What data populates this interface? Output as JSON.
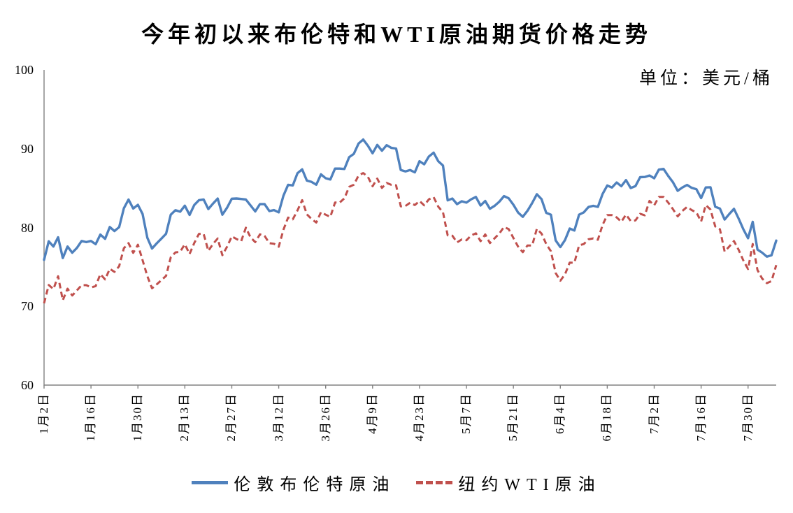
{
  "page": {
    "title": "今年初以来布伦特和WTI原油期货价格走势",
    "unit_label": "单位：美元/桶"
  },
  "colors": {
    "brent_blue": "#4F81BD",
    "wti_red": "#C0504D",
    "axis_gray": "#808080",
    "text_black": "#000000",
    "background": "#ffffff"
  },
  "legend": [
    {
      "label": "伦敦布伦特原油",
      "color": "#4F81BD",
      "line_style": "solid"
    },
    {
      "label": "纽约WTI原油",
      "color": "#C0504D",
      "line_style": "dashed"
    }
  ],
  "chart_data": {
    "type": "line",
    "title": "今年初以来布伦特和WTI原油期货价格走势",
    "unit": "美元/桶",
    "xlabel": "",
    "ylabel": "",
    "ylim": [
      60,
      100
    ],
    "yticks": [
      60,
      70,
      80,
      90,
      100
    ],
    "grid": false,
    "legend_position": "bottom",
    "x_tick_labels": [
      "1月2日",
      "1月16日",
      "1月30日",
      "2月13日",
      "2月27日",
      "3月12日",
      "3月26日",
      "4月9日",
      "4月23日",
      "5月7日",
      "5月21日",
      "6月4日",
      "6月18日",
      "7月2日",
      "7月16日",
      "7月30日"
    ],
    "x_tick_interval": 10,
    "series": [
      {
        "name": "伦敦布伦特原油",
        "color": "#4F81BD",
        "line_style": "solid",
        "values": [
          75.89,
          78.25,
          77.59,
          78.76,
          76.12,
          77.59,
          76.8,
          77.41,
          78.29,
          78.15,
          78.29,
          77.88,
          79.1,
          78.56,
          80.06,
          79.55,
          80.04,
          82.43,
          83.55,
          82.4,
          82.87,
          81.71,
          78.7,
          77.33,
          77.99,
          78.59,
          79.21,
          81.63,
          82.19,
          82.0,
          82.77,
          81.6,
          82.86,
          83.47,
          83.56,
          82.34,
          83.03,
          83.67,
          81.62,
          82.53,
          83.65,
          83.68,
          83.62,
          83.55,
          82.8,
          82.04,
          82.96,
          82.96,
          82.08,
          82.21,
          81.92,
          84.03,
          85.42,
          85.34,
          86.89,
          87.38,
          85.95,
          85.78,
          85.43,
          86.75,
          86.25,
          86.09,
          87.48,
          87.48,
          87.42,
          88.92,
          89.35,
          90.65,
          91.17,
          90.38,
          89.42,
          90.48,
          89.74,
          90.45,
          90.1,
          90.02,
          87.29,
          87.11,
          87.29,
          87.0,
          88.42,
          88.02,
          89.01,
          89.5,
          88.4,
          87.86,
          83.44,
          83.67,
          82.96,
          83.33,
          83.16,
          83.58,
          83.88,
          82.79,
          83.36,
          82.38,
          82.75,
          83.27,
          83.98,
          83.71,
          82.88,
          81.9,
          81.36,
          82.12,
          83.1,
          84.22,
          83.6,
          81.86,
          81.62,
          78.36,
          77.52,
          78.41,
          79.87,
          79.62,
          81.63,
          81.92,
          82.6,
          82.75,
          82.62,
          84.25,
          85.33,
          85.07,
          85.71,
          85.24,
          86.01,
          85.01,
          85.25,
          86.39,
          86.41,
          86.6,
          86.24,
          87.34,
          87.43,
          86.54,
          85.75,
          84.66,
          85.08,
          85.4,
          85.03,
          84.85,
          83.73,
          85.08,
          85.11,
          82.63,
          82.4,
          81.01,
          81.71,
          82.37,
          81.13,
          79.78,
          78.63,
          80.72,
          77.2,
          76.81,
          76.3,
          76.48,
          78.33
        ]
      },
      {
        "name": "纽约WTI原油",
        "color": "#C0504D",
        "line_style": "dashed",
        "values": [
          70.38,
          72.7,
          72.19,
          73.81,
          70.77,
          72.24,
          71.37,
          72.02,
          72.68,
          72.68,
          72.4,
          72.56,
          74.08,
          73.41,
          74.76,
          74.37,
          75.09,
          77.36,
          78.01,
          76.78,
          77.82,
          75.85,
          73.82,
          72.28,
          72.78,
          73.31,
          73.86,
          76.22,
          76.84,
          76.92,
          77.87,
          76.64,
          78.03,
          79.19,
          79.19,
          77.04,
          77.91,
          78.61,
          76.49,
          77.58,
          78.87,
          78.54,
          78.26,
          79.97,
          78.74,
          78.15,
          79.13,
          78.93,
          78.01,
          77.93,
          77.56,
          79.72,
          81.26,
          81.04,
          82.16,
          83.47,
          81.68,
          81.07,
          80.63,
          81.95,
          81.62,
          81.35,
          83.17,
          83.17,
          83.71,
          85.15,
          85.43,
          86.59,
          86.91,
          86.43,
          85.23,
          86.21,
          85.02,
          85.66,
          85.41,
          85.36,
          82.69,
          82.73,
          83.14,
          82.85,
          83.36,
          82.81,
          83.57,
          83.85,
          82.63,
          81.93,
          79.0,
          78.95,
          78.11,
          78.48,
          78.38,
          78.99,
          79.26,
          78.26,
          79.12,
          78.02,
          78.63,
          79.23,
          80.06,
          79.8,
          78.66,
          77.57,
          76.87,
          77.72,
          77.72,
          79.83,
          79.23,
          77.91,
          76.99,
          74.22,
          73.25,
          74.07,
          75.55,
          75.53,
          77.74,
          77.9,
          78.5,
          78.62,
          78.45,
          80.33,
          81.57,
          81.57,
          81.29,
          80.73,
          81.63,
          80.83,
          80.9,
          81.74,
          81.54,
          83.38,
          82.81,
          83.88,
          83.88,
          83.16,
          82.33,
          81.41,
          82.1,
          82.62,
          82.21,
          81.91,
          80.76,
          82.85,
          82.28,
          80.13,
          79.78,
          76.96,
          77.59,
          78.28,
          77.16,
          75.81,
          74.73,
          77.91,
          74.6,
          73.52,
          72.94,
          73.2,
          75.23
        ]
      }
    ]
  }
}
